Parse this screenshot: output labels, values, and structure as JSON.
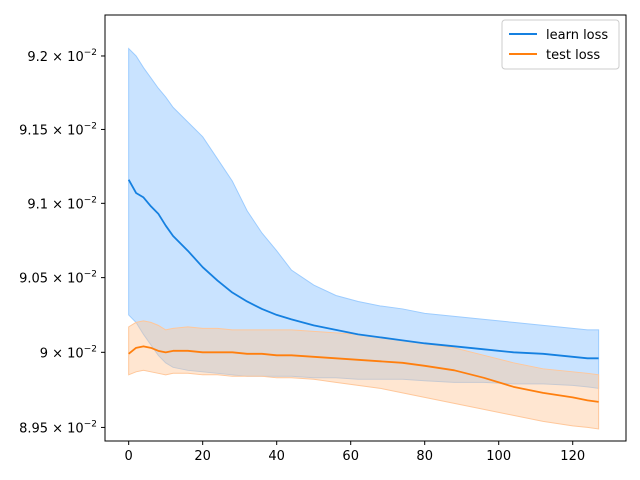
{
  "chart_data": {
    "type": "line",
    "title": "",
    "xlabel": "",
    "ylabel": "",
    "xlim": [
      -6.4,
      134.4
    ],
    "ylim": [
      0.08941,
      0.09228
    ],
    "yscale": "log",
    "grid": false,
    "legend_position": "top-right",
    "x_ticks": [
      {
        "value": 0,
        "label": "0"
      },
      {
        "value": 20,
        "label": "20"
      },
      {
        "value": 40,
        "label": "40"
      },
      {
        "value": 60,
        "label": "60"
      },
      {
        "value": 80,
        "label": "80"
      },
      {
        "value": 100,
        "label": "100"
      },
      {
        "value": 120,
        "label": "120"
      }
    ],
    "y_ticks": [
      {
        "value": 0.0895,
        "mantissa": "8.95",
        "base": "10",
        "exponent": "−2"
      },
      {
        "value": 0.09,
        "mantissa": "9",
        "base": "10",
        "exponent": "−2"
      },
      {
        "value": 0.0905,
        "mantissa": "9.05",
        "base": "10",
        "exponent": "−2"
      },
      {
        "value": 0.091,
        "mantissa": "9.1",
        "base": "10",
        "exponent": "−2"
      },
      {
        "value": 0.0915,
        "mantissa": "9.15",
        "base": "10",
        "exponent": "−2"
      },
      {
        "value": 0.092,
        "mantissa": "9.2",
        "base": "10",
        "exponent": "−2"
      }
    ],
    "series": [
      {
        "name": "learn loss",
        "color": "#1580e0",
        "band_color": "#9cccff",
        "x": [
          0,
          2,
          4,
          6,
          8,
          10,
          12,
          16,
          20,
          24,
          28,
          32,
          36,
          40,
          44,
          50,
          56,
          62,
          68,
          74,
          80,
          88,
          96,
          104,
          112,
          120,
          124,
          127
        ],
        "mean": [
          0.09116,
          0.09107,
          0.09104,
          0.09098,
          0.09093,
          0.09085,
          0.09078,
          0.09068,
          0.09057,
          0.09048,
          0.0904,
          0.09034,
          0.09029,
          0.09025,
          0.09022,
          0.09018,
          0.09015,
          0.09012,
          0.0901,
          0.09008,
          0.09006,
          0.09004,
          0.09002,
          0.09,
          0.08999,
          0.08997,
          0.08996,
          0.08996
        ],
        "upper": [
          0.09205,
          0.092,
          0.09192,
          0.09185,
          0.09178,
          0.09172,
          0.09165,
          0.09155,
          0.09145,
          0.0913,
          0.09115,
          0.09095,
          0.0908,
          0.09068,
          0.09055,
          0.09045,
          0.09038,
          0.09034,
          0.09031,
          0.09029,
          0.09026,
          0.09024,
          0.09022,
          0.0902,
          0.09018,
          0.09016,
          0.09015,
          0.09015
        ],
        "lower": [
          0.09025,
          0.0902,
          0.09012,
          0.09005,
          0.08998,
          0.08993,
          0.0899,
          0.08988,
          0.08987,
          0.08986,
          0.08985,
          0.08984,
          0.08984,
          0.08984,
          0.08984,
          0.08983,
          0.08983,
          0.08982,
          0.08982,
          0.08982,
          0.08981,
          0.0898,
          0.0898,
          0.08979,
          0.08979,
          0.08978,
          0.08977,
          0.08976
        ]
      },
      {
        "name": "test loss",
        "color": "#ff7f0e",
        "band_color": "#ffc79a",
        "x": [
          0,
          2,
          4,
          6,
          8,
          10,
          12,
          16,
          20,
          24,
          28,
          32,
          36,
          40,
          44,
          50,
          56,
          62,
          68,
          74,
          80,
          88,
          96,
          104,
          112,
          120,
          124,
          127
        ],
        "mean": [
          0.08999,
          0.09003,
          0.09004,
          0.09003,
          0.09001,
          0.09,
          0.09001,
          0.09001,
          0.09,
          0.09,
          0.09,
          0.08999,
          0.08999,
          0.08998,
          0.08998,
          0.08997,
          0.08996,
          0.08995,
          0.08994,
          0.08993,
          0.08991,
          0.08988,
          0.08983,
          0.08977,
          0.08973,
          0.0897,
          0.08968,
          0.08967
        ],
        "upper": [
          0.09017,
          0.0902,
          0.09021,
          0.0902,
          0.09018,
          0.09015,
          0.09016,
          0.09017,
          0.09016,
          0.09016,
          0.09015,
          0.09015,
          0.09015,
          0.09015,
          0.09015,
          0.09014,
          0.09013,
          0.09012,
          0.0901,
          0.09008,
          0.09006,
          0.09003,
          0.08998,
          0.08993,
          0.08989,
          0.08987,
          0.08986,
          0.08985
        ],
        "lower": [
          0.08985,
          0.08987,
          0.08988,
          0.08987,
          0.08986,
          0.08985,
          0.08986,
          0.08986,
          0.08985,
          0.08985,
          0.08984,
          0.08984,
          0.08984,
          0.08983,
          0.08983,
          0.08982,
          0.0898,
          0.08978,
          0.08976,
          0.08973,
          0.0897,
          0.08966,
          0.08962,
          0.08958,
          0.08954,
          0.08951,
          0.0895,
          0.08949
        ]
      }
    ]
  }
}
